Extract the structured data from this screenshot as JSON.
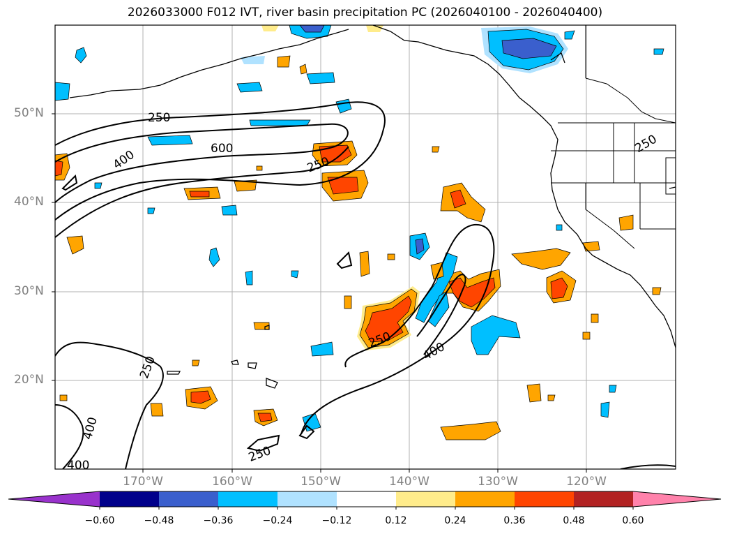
{
  "title": "2026033000 F012 IVT, river basin precipitation PC (2026040100 - 2026040400)",
  "map": {
    "lat_labels": [
      {
        "lat": 50,
        "text": "50°N"
      },
      {
        "lat": 40,
        "text": "40°N"
      },
      {
        "lat": 30,
        "text": "30°N"
      },
      {
        "lat": 20,
        "text": "20°N"
      }
    ],
    "lon_labels": [
      {
        "lon": -170,
        "text": "170°W"
      },
      {
        "lon": -160,
        "text": "160°W"
      },
      {
        "lon": -150,
        "text": "150°W"
      },
      {
        "lon": -140,
        "text": "140°W"
      },
      {
        "lon": -130,
        "text": "130°W"
      },
      {
        "lon": -120,
        "text": "120°W"
      }
    ],
    "contour_labels": [
      "250",
      "600",
      "400",
      "250",
      "250",
      "400",
      "250",
      "250",
      "400",
      "400",
      "250"
    ]
  },
  "colorbar": {
    "ticks": [
      "−0.60",
      "−0.48",
      "−0.36",
      "−0.24",
      "−0.12",
      "0.12",
      "0.24",
      "0.36",
      "0.48",
      "0.60"
    ],
    "colors": [
      "#9932cc",
      "#00008b",
      "#3a5fcd",
      "#00bfff",
      "#b0e2ff",
      "#ffffff",
      "#ffec8b",
      "#ffa500",
      "#ff4500",
      "#b22222",
      "#ff82ab"
    ]
  }
}
